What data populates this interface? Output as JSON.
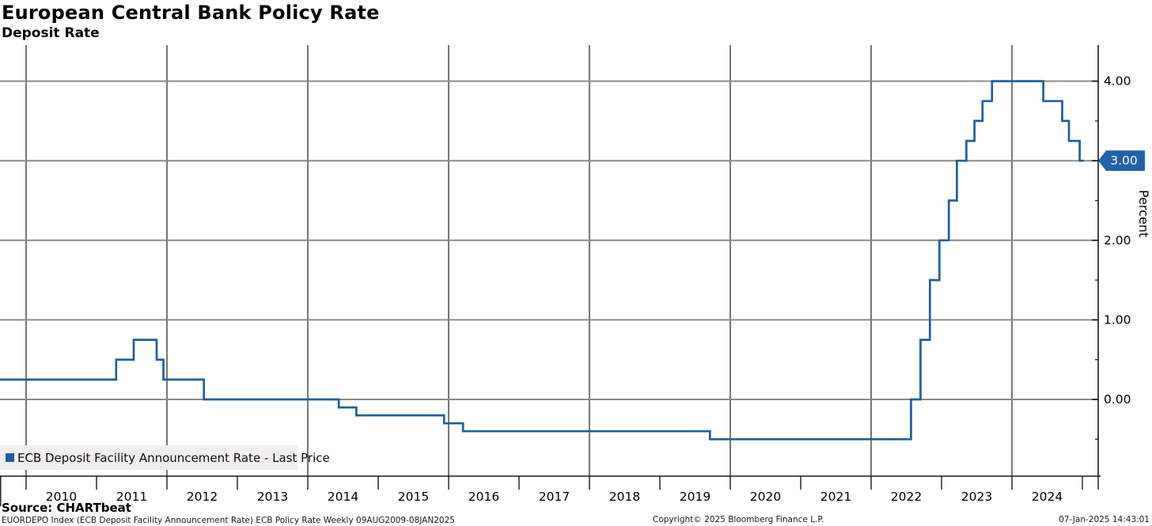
{
  "header": {
    "title": "European Central Bank Policy Rate",
    "subtitle": "Deposit Rate"
  },
  "legend": {
    "marker_color": "#1f5f9e",
    "label": "ECB Deposit Facility Announcement Rate - Last Price"
  },
  "footer": {
    "source": "Source: CHARTbeat",
    "description": "EUORDEPO Index (ECB Deposit Facility Announcement Rate) ECB Policy Rate  Weekly 09AUG2009-08JAN2025",
    "copyright": "Copyright© 2025 Bloomberg Finance L.P.",
    "timestamp": "07-Jan-2025 14:43:01"
  },
  "chart_data": {
    "type": "line",
    "subtype": "step-after",
    "title": "European Central Bank Policy Rate",
    "ylabel": "Percent",
    "ylim": [
      -0.95,
      4.45
    ],
    "x_range": [
      "2009-08-09",
      "2025-01-08"
    ],
    "grid": true,
    "legend_position": "bottom-left",
    "line_color": "#1f5f9e",
    "y_ticks": [
      {
        "value": 4.0,
        "label": "4.00"
      },
      {
        "value": 3.0,
        "label": "3.00",
        "badge": true
      },
      {
        "value": 2.0,
        "label": "2.00"
      },
      {
        "value": 1.0,
        "label": "1.00"
      },
      {
        "value": 0.0,
        "label": "0.00"
      }
    ],
    "y_minor_ticks": [
      3.5,
      2.5,
      1.5,
      0.5,
      -0.5
    ],
    "x_gridline_years": [
      2010,
      2012,
      2014,
      2016,
      2018,
      2020,
      2022,
      2024
    ],
    "x_tick_years": [
      2010,
      2011,
      2012,
      2013,
      2014,
      2015,
      2016,
      2017,
      2018,
      2019,
      2020,
      2021,
      2022,
      2023,
      2024,
      2025
    ],
    "x_year_labels": [
      "2010",
      "2011",
      "2012",
      "2013",
      "2014",
      "2015",
      "2016",
      "2017",
      "2018",
      "2019",
      "2020",
      "2021",
      "2022",
      "2023",
      "2024"
    ],
    "series": [
      {
        "name": "ECB Deposit Facility Announcement Rate - Last Price",
        "color": "#1f5f9e",
        "points": [
          {
            "date": "2009-08-09",
            "value": 0.25
          },
          {
            "date": "2011-04-13",
            "value": 0.5
          },
          {
            "date": "2011-07-13",
            "value": 0.75
          },
          {
            "date": "2011-11-09",
            "value": 0.5
          },
          {
            "date": "2011-12-14",
            "value": 0.25
          },
          {
            "date": "2012-07-11",
            "value": 0.0
          },
          {
            "date": "2014-06-11",
            "value": -0.1
          },
          {
            "date": "2014-09-10",
            "value": -0.2
          },
          {
            "date": "2015-12-09",
            "value": -0.3
          },
          {
            "date": "2016-03-16",
            "value": -0.4
          },
          {
            "date": "2019-09-18",
            "value": -0.5
          },
          {
            "date": "2022-07-27",
            "value": 0.0
          },
          {
            "date": "2022-09-14",
            "value": 0.75
          },
          {
            "date": "2022-11-02",
            "value": 1.5
          },
          {
            "date": "2022-12-21",
            "value": 2.0
          },
          {
            "date": "2023-02-08",
            "value": 2.5
          },
          {
            "date": "2023-03-22",
            "value": 3.0
          },
          {
            "date": "2023-05-10",
            "value": 3.25
          },
          {
            "date": "2023-06-21",
            "value": 3.5
          },
          {
            "date": "2023-08-02",
            "value": 3.75
          },
          {
            "date": "2023-09-20",
            "value": 4.0
          },
          {
            "date": "2024-06-12",
            "value": 3.75
          },
          {
            "date": "2024-09-18",
            "value": 3.5
          },
          {
            "date": "2024-10-23",
            "value": 3.25
          },
          {
            "date": "2024-12-18",
            "value": 3.0
          }
        ]
      }
    ],
    "last_price": {
      "label": "3.00",
      "value": 3.0,
      "badge_color": "#1e63ab"
    }
  }
}
